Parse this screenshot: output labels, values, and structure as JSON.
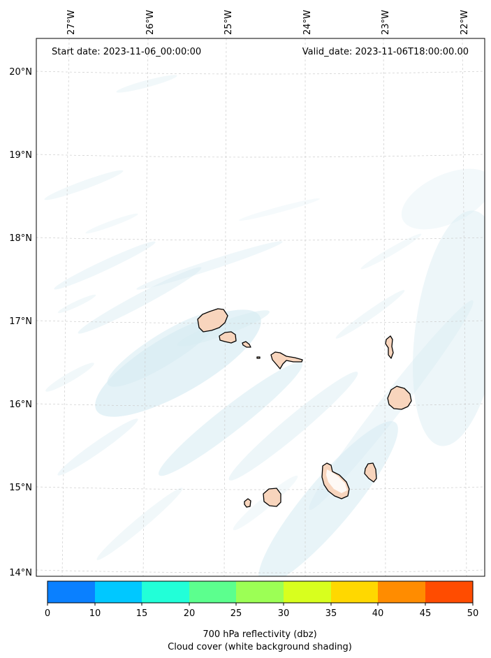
{
  "header": {
    "start_date": "Start date: 2023-11-06_00:00:00",
    "valid_date": "Valid_date: 2023-11-06T18:00:00.00"
  },
  "map": {
    "lon_labels": [
      "27°W",
      "26°W",
      "25°W",
      "24°W",
      "23°W",
      "22°W"
    ],
    "lat_labels": [
      "20°N",
      "19°N",
      "18°N",
      "17°N",
      "16°N",
      "15°N",
      "14°N"
    ],
    "cloud_color": "#d6ebf2",
    "land_color": "#f8d5bd",
    "islands": [
      "santo-antao",
      "sao-vicente",
      "santa-luzia",
      "branco",
      "sao-nicolau",
      "sal",
      "boa-vista",
      "maio",
      "santiago",
      "fogo",
      "brava"
    ]
  },
  "colorbar": {
    "ticks": [
      "0",
      "10",
      "15",
      "20",
      "25",
      "30",
      "35",
      "40",
      "45",
      "50"
    ],
    "colors": [
      "#0a80ff",
      "#00c8ff",
      "#22ffd8",
      "#5cff8e",
      "#9cff55",
      "#d8ff1e",
      "#ffd800",
      "#ff8c00",
      "#ff4c00"
    ],
    "label_line1": "700 hPa reflectivity (dbz)",
    "label_line2": "Cloud cover (white background shading)"
  }
}
